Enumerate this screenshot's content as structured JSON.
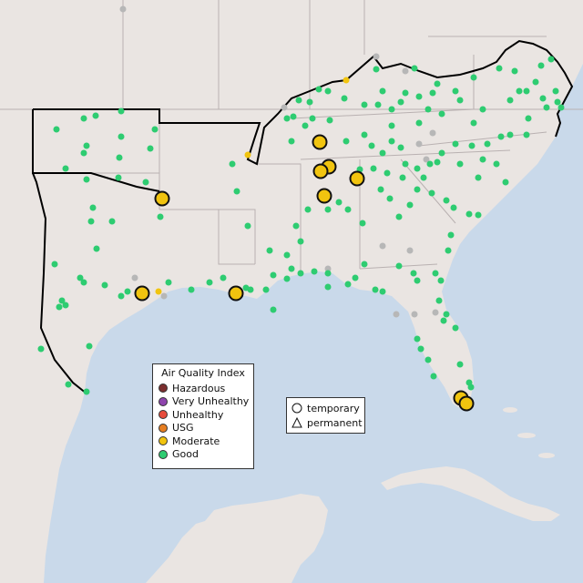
{
  "colors": {
    "water": "#c9d9ea",
    "land": "#eae5e2",
    "state_border": "#b9b1b1",
    "region_border": "#000000",
    "good": "#2ecc71",
    "moderate": "#f1c40f",
    "usg": "#e67e22",
    "unhealthy": "#e74c3c",
    "very_unhealthy": "#8e44ad",
    "hazardous": "#7b2e2e",
    "no_data": "#b7b7b7"
  },
  "aqi_legend": {
    "title": "Air Quality Index",
    "items": [
      {
        "label": "Hazardous",
        "color": "#7b2e2e"
      },
      {
        "label": "Very Unhealthy",
        "color": "#8e44ad"
      },
      {
        "label": "Unhealthy",
        "color": "#e74c3c"
      },
      {
        "label": "USG",
        "color": "#e67e22"
      },
      {
        "label": "Moderate",
        "color": "#f1c40f"
      },
      {
        "label": "Good",
        "color": "#2ecc71"
      }
    ]
  },
  "type_legend": {
    "items": [
      {
        "label": "temporary",
        "symbol": "circle"
      },
      {
        "label": "permanent",
        "symbol": "triangle"
      }
    ]
  }
}
